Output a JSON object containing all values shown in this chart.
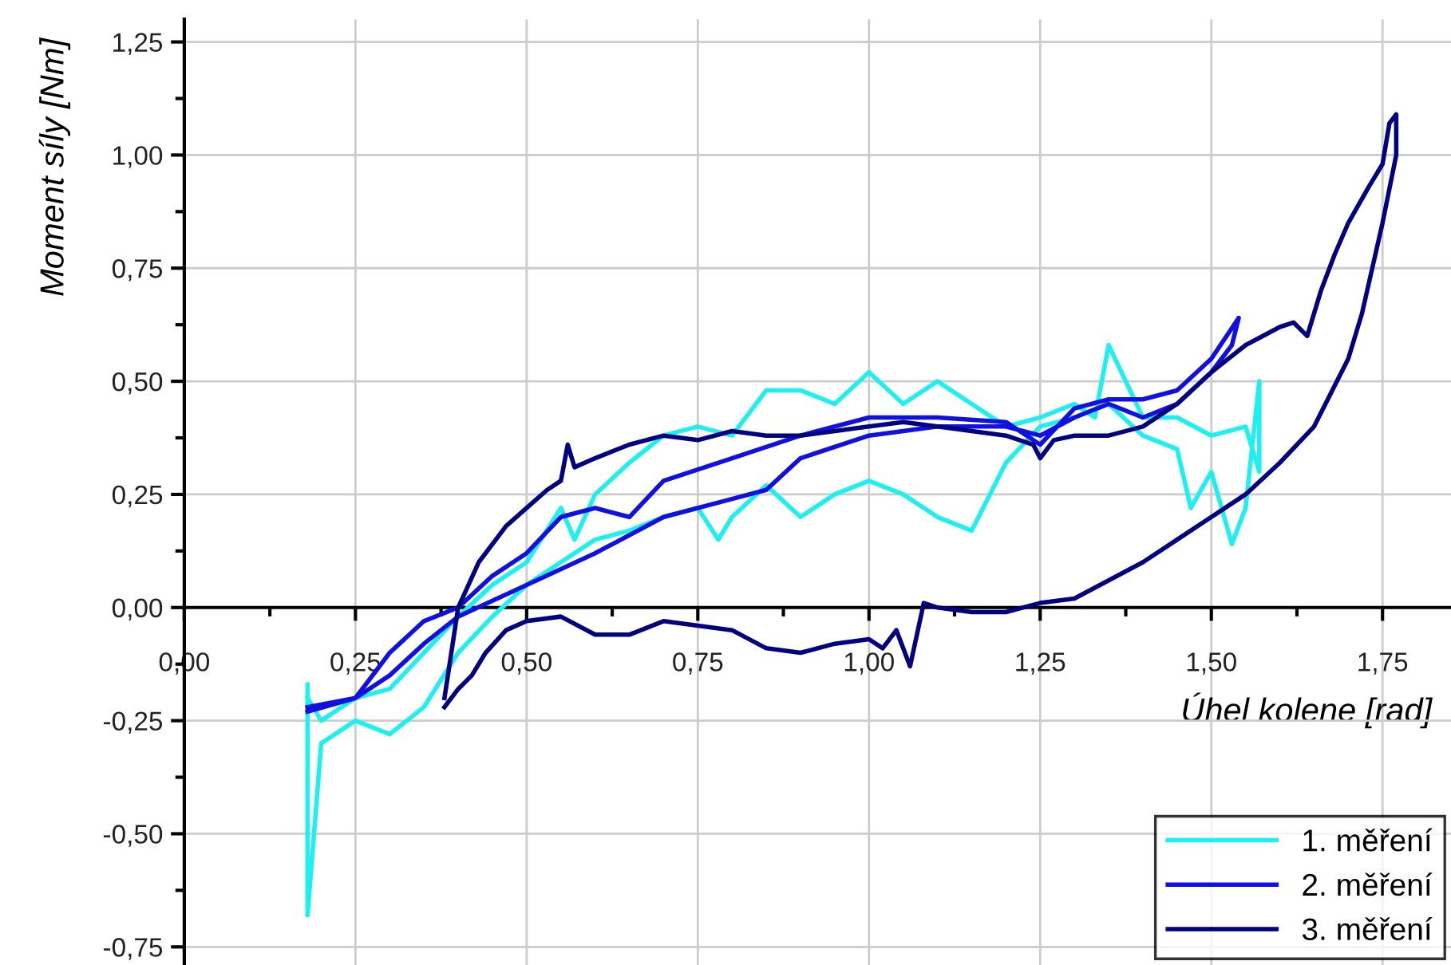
{
  "chart_data": {
    "type": "line",
    "xlabel": "Úhel kolene [rad]",
    "ylabel": "Moment síly [Nm]",
    "xlim": [
      0,
      1.85
    ],
    "ylim": [
      -0.79,
      1.3
    ],
    "xticks": [
      {
        "value": 0,
        "label": "0,00"
      },
      {
        "value": 0.125,
        "label": null
      },
      {
        "value": 0.25,
        "label": "0,25"
      },
      {
        "value": 0.375,
        "label": null
      },
      {
        "value": 0.5,
        "label": "0,50"
      },
      {
        "value": 0.625,
        "label": null
      },
      {
        "value": 0.75,
        "label": "0,75"
      },
      {
        "value": 0.875,
        "label": null
      },
      {
        "value": 1.0,
        "label": "1,00"
      },
      {
        "value": 1.125,
        "label": null
      },
      {
        "value": 1.25,
        "label": "1,25"
      },
      {
        "value": 1.375,
        "label": null
      },
      {
        "value": 1.5,
        "label": "1,50"
      },
      {
        "value": 1.625,
        "label": null
      },
      {
        "value": 1.75,
        "label": "1,75"
      }
    ],
    "yticks": [
      {
        "value": -0.75,
        "label": "-0,75"
      },
      {
        "value": -0.625,
        "label": null
      },
      {
        "value": -0.5,
        "label": "-0,50"
      },
      {
        "value": -0.375,
        "label": null
      },
      {
        "value": -0.25,
        "label": "-0,25"
      },
      {
        "value": -0.125,
        "label": null
      },
      {
        "value": 0,
        "label": "0,00"
      },
      {
        "value": 0.125,
        "label": null
      },
      {
        "value": 0.25,
        "label": "0,25"
      },
      {
        "value": 0.375,
        "label": null
      },
      {
        "value": 0.5,
        "label": "0,50"
      },
      {
        "value": 0.625,
        "label": null
      },
      {
        "value": 0.75,
        "label": "0,75"
      },
      {
        "value": 0.875,
        "label": null
      },
      {
        "value": 1.0,
        "label": "1,00"
      },
      {
        "value": 1.125,
        "label": null
      },
      {
        "value": 1.25,
        "label": "1,25"
      }
    ],
    "grid": true,
    "legend": "bottom right",
    "marker": "none",
    "line_style": "solid",
    "series": [
      {
        "name": "1. měření",
        "color": "#1ef0f0",
        "x": [
          0.18,
          0.18,
          0.2,
          0.25,
          0.3,
          0.35,
          0.4,
          0.45,
          0.5,
          0.55,
          0.6,
          0.65,
          0.7,
          0.75,
          0.78,
          0.8,
          0.85,
          0.9,
          0.95,
          1.0,
          1.05,
          1.1,
          1.15,
          1.2,
          1.25,
          1.3,
          1.35,
          1.4,
          1.45,
          1.47,
          1.5,
          1.53,
          1.55,
          1.57,
          1.57,
          1.55,
          1.5,
          1.45,
          1.4,
          1.35,
          1.33,
          1.3,
          1.25,
          1.2,
          1.15,
          1.1,
          1.05,
          1.0,
          0.95,
          0.9,
          0.85,
          0.8,
          0.75,
          0.7,
          0.65,
          0.6,
          0.57,
          0.55,
          0.5,
          0.45,
          0.4,
          0.35,
          0.3,
          0.25,
          0.2,
          0.18
        ],
        "values": [
          -0.17,
          -0.68,
          -0.3,
          -0.25,
          -0.28,
          -0.22,
          -0.1,
          -0.02,
          0.05,
          0.1,
          0.15,
          0.17,
          0.2,
          0.22,
          0.15,
          0.2,
          0.27,
          0.2,
          0.25,
          0.28,
          0.25,
          0.2,
          0.17,
          0.32,
          0.4,
          0.42,
          0.45,
          0.38,
          0.35,
          0.22,
          0.3,
          0.14,
          0.22,
          0.5,
          0.3,
          0.4,
          0.38,
          0.42,
          0.42,
          0.58,
          0.42,
          0.45,
          0.42,
          0.4,
          0.45,
          0.5,
          0.45,
          0.52,
          0.45,
          0.48,
          0.48,
          0.38,
          0.4,
          0.38,
          0.32,
          0.25,
          0.15,
          0.22,
          0.1,
          0.05,
          -0.02,
          -0.1,
          -0.18,
          -0.2,
          -0.25,
          -0.2
        ]
      },
      {
        "name": "2. měření",
        "color": "#1010e0",
        "x": [
          0.18,
          0.25,
          0.3,
          0.35,
          0.4,
          0.45,
          0.5,
          0.55,
          0.6,
          0.65,
          0.7,
          0.8,
          0.9,
          1.0,
          1.1,
          1.2,
          1.25,
          1.3,
          1.35,
          1.4,
          1.45,
          1.5,
          1.54,
          1.53,
          1.5,
          1.45,
          1.4,
          1.35,
          1.3,
          1.25,
          1.2,
          1.1,
          1.0,
          0.9,
          0.85,
          0.8,
          0.7,
          0.6,
          0.5,
          0.4,
          0.35,
          0.3,
          0.25,
          0.18
        ],
        "values": [
          -0.23,
          -0.2,
          -0.1,
          -0.03,
          0.0,
          0.07,
          0.12,
          0.2,
          0.22,
          0.2,
          0.28,
          0.33,
          0.38,
          0.42,
          0.42,
          0.41,
          0.36,
          0.44,
          0.46,
          0.46,
          0.48,
          0.55,
          0.64,
          0.58,
          0.52,
          0.45,
          0.42,
          0.45,
          0.42,
          0.38,
          0.4,
          0.4,
          0.38,
          0.33,
          0.26,
          0.24,
          0.2,
          0.12,
          0.05,
          -0.02,
          -0.08,
          -0.15,
          -0.2,
          -0.22
        ]
      },
      {
        "name": "3. měření",
        "color": "#000080",
        "x": [
          0.38,
          0.4,
          0.43,
          0.47,
          0.5,
          0.53,
          0.55,
          0.56,
          0.57,
          0.6,
          0.65,
          0.7,
          0.75,
          0.8,
          0.85,
          0.9,
          0.95,
          1.0,
          1.05,
          1.1,
          1.15,
          1.2,
          1.24,
          1.25,
          1.27,
          1.3,
          1.35,
          1.4,
          1.45,
          1.5,
          1.55,
          1.6,
          1.62,
          1.64,
          1.66,
          1.68,
          1.7,
          1.73,
          1.75,
          1.76,
          1.77,
          1.77,
          1.75,
          1.72,
          1.7,
          1.65,
          1.6,
          1.55,
          1.5,
          1.45,
          1.4,
          1.35,
          1.3,
          1.25,
          1.2,
          1.15,
          1.1,
          1.08,
          1.06,
          1.04,
          1.02,
          1.0,
          0.95,
          0.9,
          0.85,
          0.8,
          0.75,
          0.7,
          0.65,
          0.6,
          0.55,
          0.5,
          0.47,
          0.44,
          0.42,
          0.4,
          0.38
        ],
        "values": [
          -0.2,
          0.0,
          0.1,
          0.18,
          0.22,
          0.26,
          0.28,
          0.36,
          0.31,
          0.33,
          0.36,
          0.38,
          0.37,
          0.39,
          0.38,
          0.38,
          0.39,
          0.4,
          0.41,
          0.4,
          0.39,
          0.38,
          0.36,
          0.33,
          0.37,
          0.38,
          0.38,
          0.4,
          0.45,
          0.52,
          0.58,
          0.62,
          0.63,
          0.6,
          0.7,
          0.78,
          0.85,
          0.93,
          0.98,
          1.07,
          1.09,
          1.0,
          0.85,
          0.65,
          0.55,
          0.4,
          0.32,
          0.25,
          0.2,
          0.15,
          0.1,
          0.06,
          0.02,
          0.01,
          -0.01,
          -0.01,
          0.0,
          0.01,
          -0.13,
          -0.05,
          -0.09,
          -0.07,
          -0.08,
          -0.1,
          -0.09,
          -0.05,
          -0.04,
          -0.03,
          -0.06,
          -0.06,
          -0.02,
          -0.03,
          -0.05,
          -0.1,
          -0.15,
          -0.18,
          -0.22
        ]
      }
    ]
  }
}
